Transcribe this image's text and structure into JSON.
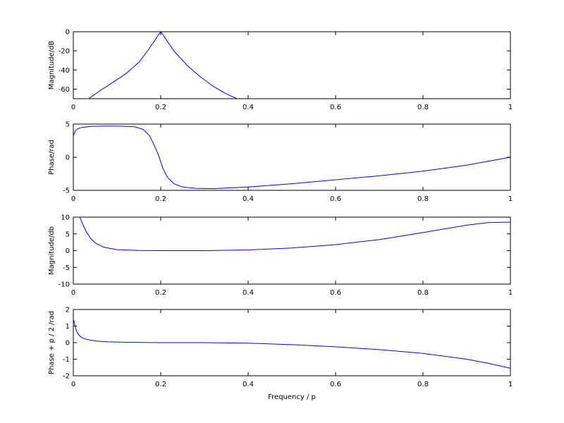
{
  "figure": {
    "xlabel": "Frequency / p"
  },
  "chart_data": [
    {
      "type": "line",
      "ylabel": "Magnitude/dB",
      "xlim": [
        0,
        1
      ],
      "ylim": [
        -70,
        0
      ],
      "xticks": [
        "0",
        "0.2",
        "0.4",
        "0.6",
        "0.8",
        "1"
      ],
      "yticks": [
        "-60",
        "-40",
        "-20",
        "0"
      ],
      "ytick_values": [
        -60,
        -40,
        -20,
        0
      ],
      "series": [
        {
          "x": [
            0.035,
            0.06,
            0.09,
            0.12,
            0.15,
            0.17,
            0.185,
            0.195,
            0.2,
            0.205,
            0.215,
            0.23,
            0.26,
            0.29,
            0.32,
            0.35,
            0.375
          ],
          "y": [
            -70,
            -62,
            -53,
            -44,
            -32,
            -20,
            -10,
            -3,
            0,
            -3,
            -10,
            -20,
            -35,
            -47,
            -57,
            -65,
            -70
          ]
        }
      ]
    },
    {
      "type": "line",
      "ylabel": "Phase/rad",
      "xlim": [
        0,
        1
      ],
      "ylim": [
        -5,
        5
      ],
      "xticks": [
        "0",
        "0.2",
        "0.4",
        "0.6",
        "0.8",
        "1"
      ],
      "yticks": [
        "-5",
        "0",
        "5"
      ],
      "ytick_values": [
        -5,
        0,
        5
      ],
      "series": [
        {
          "x": [
            0,
            0.005,
            0.01,
            0.02,
            0.04,
            0.07,
            0.1,
            0.14,
            0.16,
            0.175,
            0.185,
            0.195,
            0.2,
            0.205,
            0.215,
            0.23,
            0.25,
            0.28,
            0.32,
            0.4,
            0.5,
            0.6,
            0.7,
            0.8,
            0.9,
            1.0
          ],
          "y": [
            3.3,
            4.0,
            4.3,
            4.5,
            4.65,
            4.7,
            4.7,
            4.6,
            4.2,
            3.2,
            1.8,
            0.3,
            -0.7,
            -1.7,
            -3.0,
            -4.0,
            -4.5,
            -4.7,
            -4.75,
            -4.5,
            -4.0,
            -3.4,
            -2.8,
            -2.1,
            -1.2,
            0
          ]
        }
      ]
    },
    {
      "type": "line",
      "ylabel": "Magnitude/db",
      "xlim": [
        0,
        1
      ],
      "ylim": [
        -10,
        10
      ],
      "xticks": [
        "0",
        "0.2",
        "0.4",
        "0.6",
        "0.8",
        "1"
      ],
      "yticks": [
        "-10",
        "-5",
        "0",
        "5",
        "10"
      ],
      "ytick_values": [
        -10,
        -5,
        0,
        5,
        10
      ],
      "series": [
        {
          "x": [
            0.015,
            0.02,
            0.03,
            0.04,
            0.05,
            0.07,
            0.1,
            0.15,
            0.2,
            0.3,
            0.4,
            0.5,
            0.6,
            0.7,
            0.8,
            0.9,
            0.95,
            1.0
          ],
          "y": [
            10,
            8.3,
            5.6,
            3.6,
            2.3,
            1.0,
            0.3,
            0.05,
            0,
            0,
            0.2,
            0.8,
            1.8,
            3.3,
            5.4,
            7.6,
            8.4,
            8.5
          ]
        }
      ]
    },
    {
      "type": "line",
      "ylabel": "Phase + p / 2 /rad",
      "xlim": [
        0,
        1
      ],
      "ylim": [
        -2,
        2
      ],
      "xticks": [
        "0",
        "0.2",
        "0.4",
        "0.6",
        "0.8",
        "1"
      ],
      "yticks": [
        "-2",
        "-1",
        "0",
        "1",
        "2"
      ],
      "ytick_values": [
        -2,
        -1,
        0,
        1,
        2
      ],
      "series": [
        {
          "x": [
            0.001,
            0.003,
            0.006,
            0.01,
            0.015,
            0.02,
            0.03,
            0.05,
            0.08,
            0.12,
            0.2,
            0.3,
            0.4,
            0.5,
            0.6,
            0.7,
            0.8,
            0.9,
            0.95,
            1.0
          ],
          "y": [
            1.35,
            1.1,
            0.8,
            0.55,
            0.4,
            0.3,
            0.2,
            0.1,
            0.05,
            0.02,
            0,
            0,
            -0.03,
            -0.12,
            -0.25,
            -0.42,
            -0.65,
            -1.0,
            -1.25,
            -1.55
          ]
        }
      ]
    }
  ]
}
